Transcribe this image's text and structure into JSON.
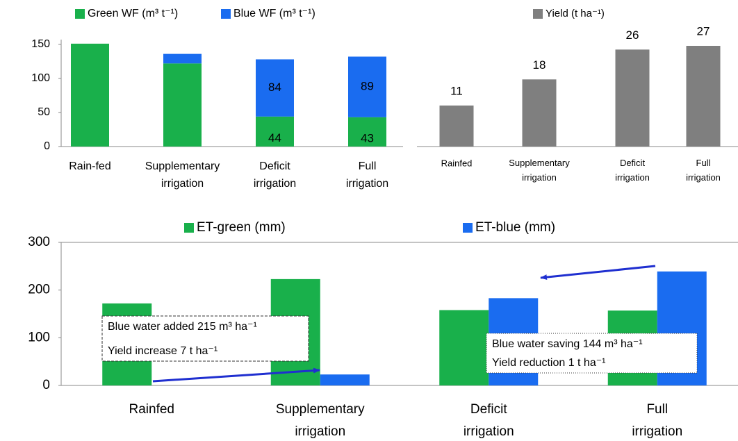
{
  "chart_data": [
    {
      "type": "bar",
      "stacked": true,
      "categories": [
        "Rain-fed",
        "Supplementary irrigation",
        "Deficit irrigation",
        "Full irrigation"
      ],
      "series": [
        {
          "name": "Green WF (m³ t⁻¹)",
          "color": "#19b04b",
          "values": [
            151,
            122,
            44,
            43
          ],
          "value_labels": [
            null,
            null,
            "44",
            "43"
          ]
        },
        {
          "name": "Blue WF (m³ t⁻¹)",
          "color": "#1a6cf0",
          "values": [
            0,
            14,
            84,
            89
          ],
          "value_labels": [
            null,
            null,
            "84",
            "89"
          ]
        }
      ],
      "ylim": [
        0,
        157
      ],
      "yticks": [
        0,
        50,
        100,
        150
      ]
    },
    {
      "type": "bar",
      "categories": [
        "Rainfed",
        "Supplementary irrigation",
        "Deficit irrigation",
        "Full irrigation"
      ],
      "series": [
        {
          "name": "Yield (t ha⁻¹)",
          "color": "#7f7f7f",
          "values": [
            11,
            18,
            26,
            27
          ],
          "value_labels": [
            "11",
            "18",
            "26",
            "27"
          ]
        }
      ]
    },
    {
      "type": "bar",
      "stacked": false,
      "categories": [
        "Rainfed",
        "Supplementary irrigation",
        "Deficit irrigation",
        "Full irrigation"
      ],
      "series": [
        {
          "name": "ET-green (mm)",
          "color": "#19b04b",
          "values": [
            172,
            223,
            158,
            157
          ]
        },
        {
          "name": "ET-blue (mm)",
          "color": "#1a6cf0",
          "values": [
            0,
            23,
            183,
            239
          ]
        }
      ],
      "ylim": [
        0,
        300
      ],
      "yticks": [
        0,
        100,
        200,
        300
      ],
      "annotations": [
        {
          "lines": [
            "Blue water added 215 m³ ha⁻¹",
            "Yield increase 7 t ha⁻¹"
          ]
        },
        {
          "lines": [
            "Blue water  saving 144 m³ ha⁻¹",
            "Yield reduction 1 t ha⁻¹"
          ]
        }
      ]
    }
  ]
}
